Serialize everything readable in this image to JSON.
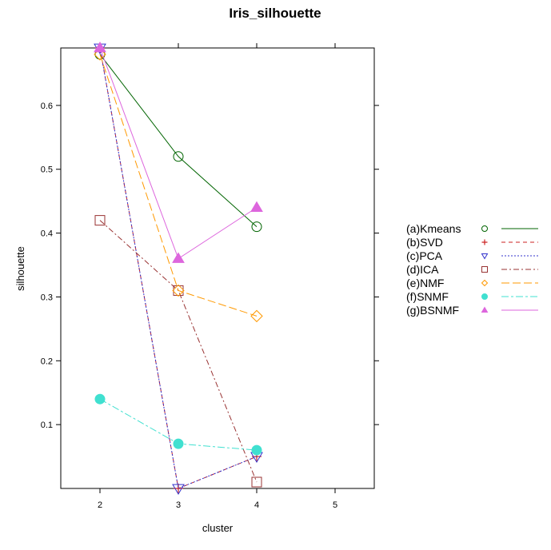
{
  "chart_data": {
    "type": "line",
    "title": "Iris_silhouette",
    "xlabel": "cluster",
    "ylabel": "silhouette",
    "x": [
      2,
      3,
      4
    ],
    "xticks": [
      2,
      3,
      4,
      5
    ],
    "yticks": [
      0.1,
      0.2,
      0.3,
      0.4,
      0.5,
      0.6
    ],
    "xlim": [
      1.5,
      5.5
    ],
    "ylim": [
      0.0,
      0.69
    ],
    "grid": false,
    "legend_position": "right",
    "series": [
      {
        "name": "(a)Kmeans",
        "values": [
          0.68,
          0.52,
          0.41
        ],
        "color": "#006400",
        "marker": "circle-open",
        "dash": "solid"
      },
      {
        "name": "(b)SVD",
        "values": [
          0.69,
          0.0,
          0.05
        ],
        "color": "#cc2222",
        "marker": "plus",
        "dash": "dashed"
      },
      {
        "name": "(c)PCA",
        "values": [
          0.69,
          0.0,
          0.05
        ],
        "color": "#3333cc",
        "marker": "triangle-down-open",
        "dash": "dotted"
      },
      {
        "name": "(d)ICA",
        "values": [
          0.42,
          0.31,
          0.01
        ],
        "color": "#993333",
        "marker": "square-open",
        "dash": "dashdot"
      },
      {
        "name": "(e)NMF",
        "values": [
          0.68,
          0.31,
          0.27
        ],
        "color": "#ff9900",
        "marker": "diamond-open",
        "dash": "longdash"
      },
      {
        "name": "(f)SNMF",
        "values": [
          0.14,
          0.07,
          0.06
        ],
        "color": "#40e0d0",
        "marker": "circle-filled",
        "dash": "twodash"
      },
      {
        "name": "(g)BSNMF",
        "values": [
          0.69,
          0.36,
          0.44
        ],
        "color": "#dd66dd",
        "marker": "triangle-up-filled",
        "dash": "solid"
      }
    ]
  }
}
